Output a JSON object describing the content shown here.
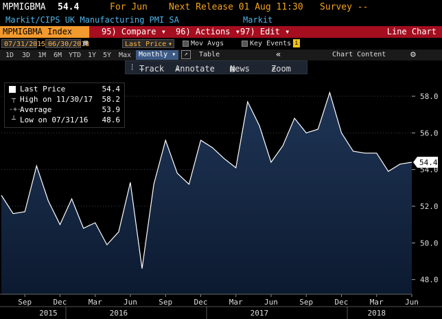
{
  "header": {
    "ticker": "MPMIGBMA",
    "price": "54.4",
    "for_month": "For Jun",
    "next_release": "Next Release 01 Aug 11:30",
    "survey": "Survey --"
  },
  "subheader": {
    "description": "Markit/CIPS UK Manufacturing PMI SA",
    "source": "Markit"
  },
  "menubar": {
    "index_label": "MPMIGBMA Index",
    "compare_num": "95)",
    "compare_label": "Compare",
    "actions_num": "96)",
    "actions_label": "Actions",
    "edit_num": "97)",
    "edit_label": "Edit",
    "chart_type": "Line Chart"
  },
  "controls": {
    "start_date": "07/31/2015",
    "end_date": "06/30/2018",
    "field": "Last Price",
    "mov_avgs": "Mov Avgs",
    "key_events": "Key Events",
    "key_events_info": "i"
  },
  "periods": [
    "1D",
    "3D",
    "1M",
    "6M",
    "YTD",
    "1Y",
    "5Y",
    "Max"
  ],
  "frequency": "Monthly",
  "table_label": "Table",
  "chart_content_label": "Chart Content",
  "toolbar": {
    "track": "Track",
    "annotate": "Annotate",
    "news": "News",
    "zoom": "Zoom"
  },
  "legend": {
    "last_label": "Last Price",
    "last_value": "54.4",
    "high_label": "High on 11/30/17",
    "high_value": "58.2",
    "avg_label": "Average",
    "avg_value": "53.9",
    "low_label": "Low on 07/31/16",
    "low_value": "48.6"
  },
  "colors": {
    "accent_orange": "#f5a31a",
    "menubar_red": "#a40e1f",
    "desc_blue": "#4fb3e8",
    "area_fill_top": "#1f3556",
    "area_fill_bottom": "#0c1a30",
    "line": "#ffffff"
  },
  "chart_data": {
    "type": "area",
    "title": "",
    "xlabel": "",
    "ylabel": "",
    "x": [
      "2015-07",
      "2015-08",
      "2015-09",
      "2015-10",
      "2015-11",
      "2015-12",
      "2016-01",
      "2016-02",
      "2016-03",
      "2016-04",
      "2016-05",
      "2016-06",
      "2016-07",
      "2016-08",
      "2016-09",
      "2016-10",
      "2016-11",
      "2016-12",
      "2017-01",
      "2017-02",
      "2017-03",
      "2017-04",
      "2017-05",
      "2017-06",
      "2017-07",
      "2017-08",
      "2017-09",
      "2017-10",
      "2017-11",
      "2017-12",
      "2018-01",
      "2018-02",
      "2018-03",
      "2018-04",
      "2018-05",
      "2018-06"
    ],
    "values": [
      52.6,
      51.6,
      51.7,
      54.2,
      52.3,
      51.0,
      52.4,
      50.8,
      51.1,
      49.9,
      50.6,
      53.3,
      48.6,
      53.2,
      55.6,
      53.8,
      53.2,
      55.6,
      55.2,
      54.6,
      54.1,
      57.7,
      56.4,
      54.4,
      55.3,
      56.8,
      56.0,
      56.2,
      58.2,
      56.0,
      55.0,
      54.9,
      54.9,
      53.9,
      54.3,
      54.4
    ],
    "ylim": [
      47.2,
      59.2
    ],
    "yticks": [
      48.0,
      50.0,
      52.0,
      54.0,
      56.0,
      58.0
    ],
    "ytick_labels": [
      "48.0",
      "50.0",
      "52.0",
      "54.0",
      "56.0",
      "58.0"
    ],
    "xtick_labels": [
      {
        "label": "Sep",
        "at": "2015-09"
      },
      {
        "label": "Dec",
        "at": "2015-12"
      },
      {
        "label": "Mar",
        "at": "2016-03"
      },
      {
        "label": "Jun",
        "at": "2016-06"
      },
      {
        "label": "Sep",
        "at": "2016-09"
      },
      {
        "label": "Dec",
        "at": "2016-12"
      },
      {
        "label": "Mar",
        "at": "2017-03"
      },
      {
        "label": "Jun",
        "at": "2017-06"
      },
      {
        "label": "Sep",
        "at": "2017-09"
      },
      {
        "label": "Dec",
        "at": "2017-12"
      },
      {
        "label": "Mar",
        "at": "2018-03"
      },
      {
        "label": "Jun",
        "at": "2018-06"
      }
    ],
    "year_labels": [
      {
        "label": "2015",
        "at": "2015-11"
      },
      {
        "label": "2016",
        "at": "2016-05"
      },
      {
        "label": "2017",
        "at": "2017-05"
      },
      {
        "label": "2018",
        "at": "2018-03"
      }
    ],
    "last_value_tag": "54.4",
    "grid": "horizontal-dotted",
    "legend_placement": "top-left"
  }
}
